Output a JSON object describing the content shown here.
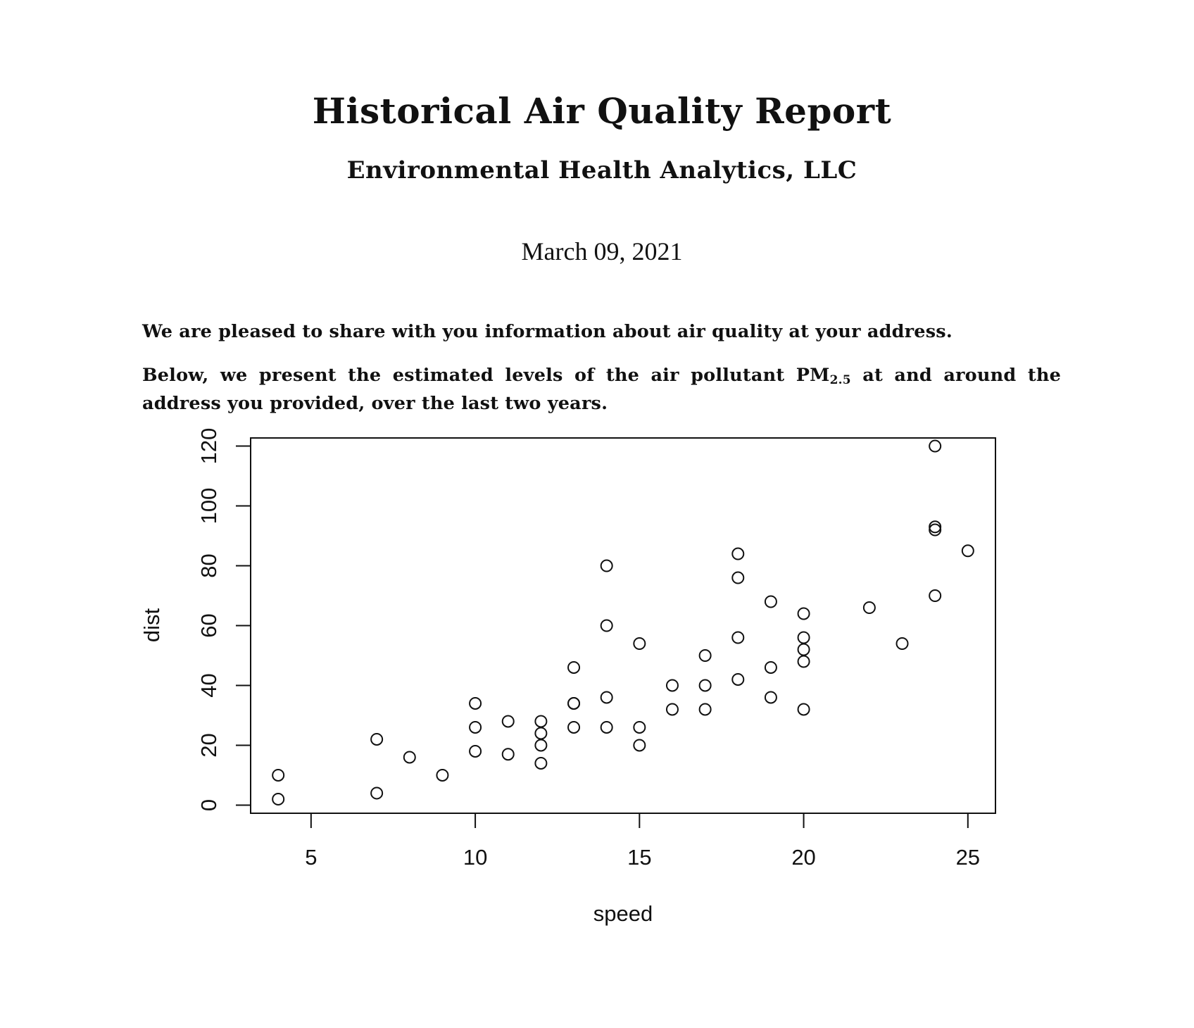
{
  "document": {
    "title": "Historical Air Quality Report",
    "subtitle": "Environmental Health Analytics, LLC",
    "date": "March 09, 2021",
    "intro": "We are pleased to share with you information about air quality at your address.",
    "body_before_pm": "Below, we present the estimated levels of the air pollutant PM",
    "pm_subscript": "2.5",
    "body_after_pm": " at and around the address you provided, over the last two years."
  },
  "chart_data": {
    "type": "scatter",
    "xlabel": "speed",
    "ylabel": "dist",
    "xlim": [
      3.16,
      25.84
    ],
    "ylim": [
      -2.72,
      122.72
    ],
    "xticks": [
      5,
      10,
      15,
      20,
      25
    ],
    "yticks": [
      0,
      20,
      40,
      60,
      80,
      100,
      120
    ],
    "grid": false,
    "marker": "open-circle",
    "x": [
      4,
      4,
      7,
      7,
      8,
      9,
      10,
      10,
      10,
      11,
      11,
      12,
      12,
      12,
      12,
      13,
      13,
      13,
      13,
      14,
      14,
      14,
      14,
      15,
      15,
      15,
      16,
      16,
      17,
      17,
      17,
      18,
      18,
      18,
      18,
      19,
      19,
      19,
      20,
      20,
      20,
      20,
      20,
      22,
      23,
      24,
      24,
      24,
      24,
      25
    ],
    "y": [
      2,
      10,
      4,
      22,
      16,
      10,
      18,
      26,
      34,
      17,
      28,
      14,
      20,
      24,
      28,
      26,
      34,
      34,
      46,
      26,
      36,
      60,
      80,
      20,
      26,
      54,
      32,
      40,
      32,
      40,
      50,
      42,
      56,
      76,
      84,
      36,
      46,
      68,
      32,
      48,
      52,
      56,
      64,
      66,
      54,
      70,
      92,
      93,
      120,
      85
    ]
  }
}
